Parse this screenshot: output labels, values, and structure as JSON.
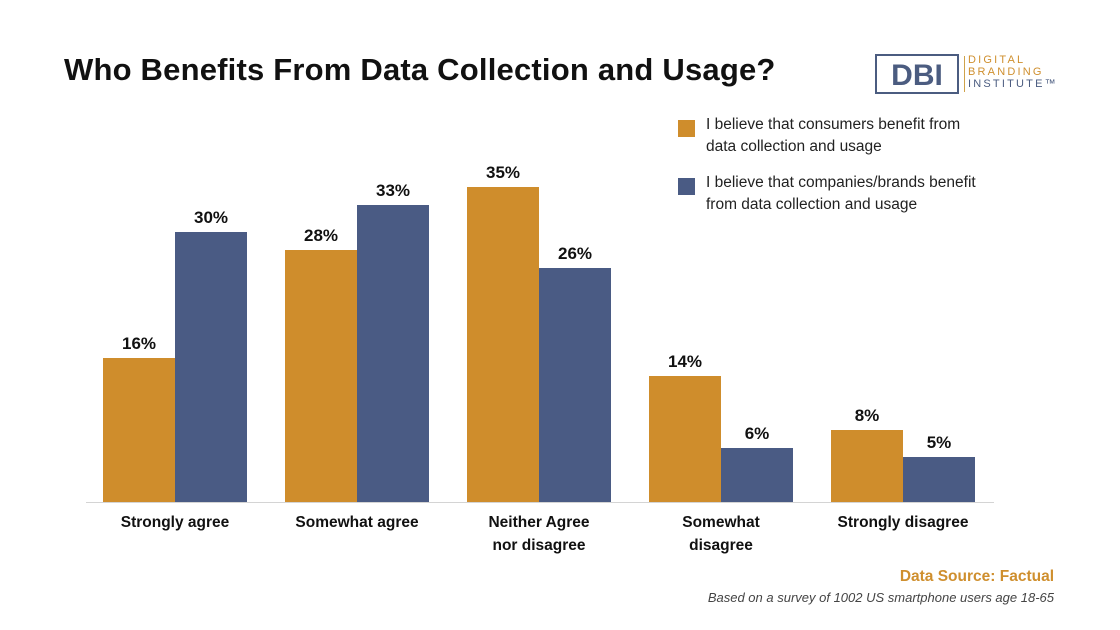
{
  "title": "Who Benefits From Data Collection and Usage?",
  "logo": {
    "mark": "DBI",
    "line1": "DIGITAL",
    "line2": "BRANDING",
    "line3": "INSTITUTE™",
    "colors": {
      "navy": "#4b5c80",
      "orange": "#cf8f2e"
    }
  },
  "source_label": "Data Source: Factual",
  "footnote": "Based on a survey of 1002 US smartphone users age 18-65",
  "chart_data": {
    "type": "bar",
    "title": "Who Benefits From Data Collection and Usage?",
    "categories": [
      [
        "Strongly agree"
      ],
      [
        "Somewhat agree"
      ],
      [
        "Neither Agree",
        "nor disagree"
      ],
      [
        "Somewhat",
        "disagree"
      ],
      [
        "Strongly disagree"
      ]
    ],
    "series": [
      {
        "name": "I believe that consumers benefit from data collection and usage",
        "legend_lines": [
          "I believe that consumers benefit from",
          "data collection and usage"
        ],
        "color": "#cf8d2c",
        "values": [
          16,
          28,
          35,
          14,
          8
        ]
      },
      {
        "name": "I believe that companies/brands benefit from data collection and usage",
        "legend_lines": [
          "I believe that companies/brands benefit",
          "from data collection and usage"
        ],
        "color": "#4a5b84",
        "values": [
          30,
          33,
          26,
          6,
          5
        ]
      }
    ],
    "value_suffix": "%",
    "ylim": [
      0,
      35
    ],
    "grid": false,
    "legend_position": "top-right"
  }
}
